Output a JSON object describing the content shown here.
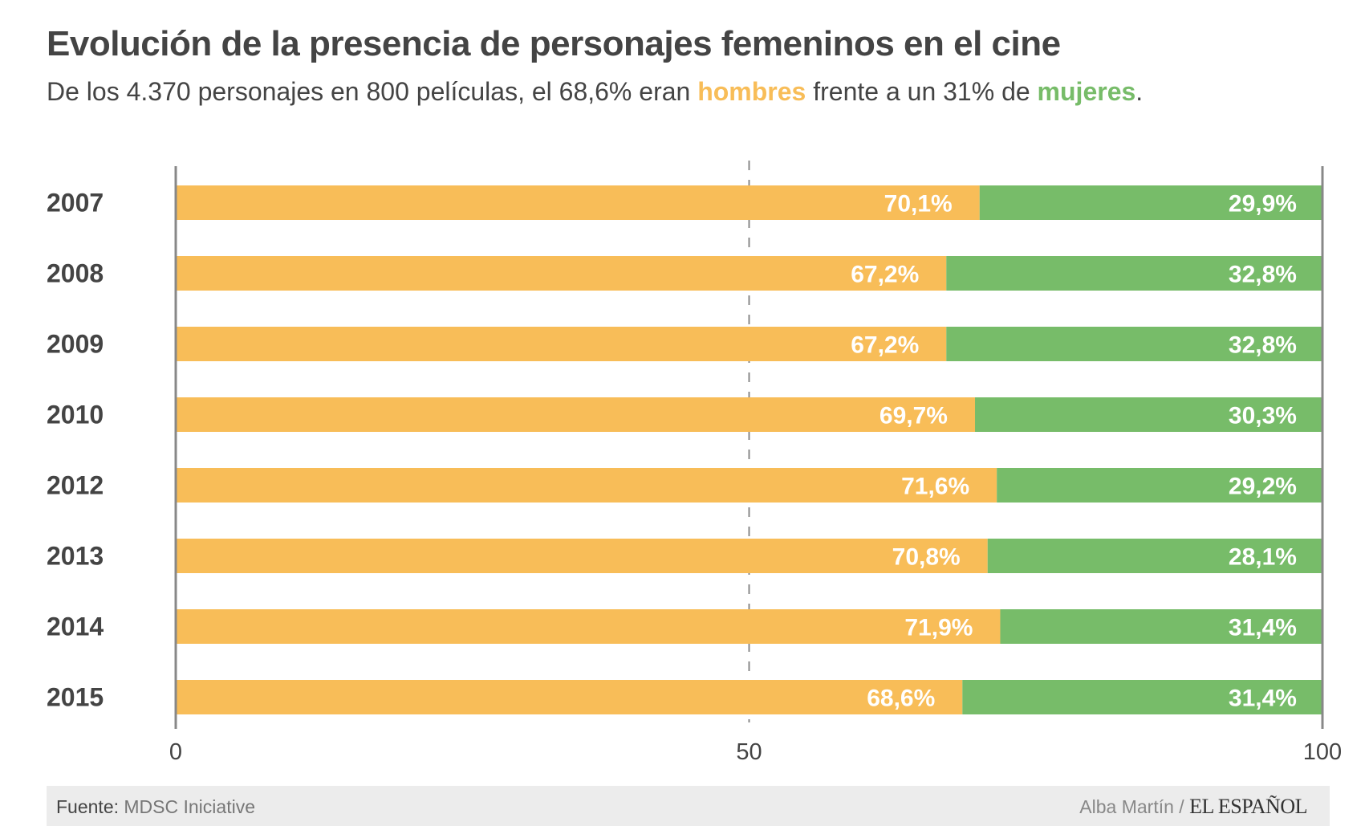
{
  "title": "Evolución de la presencia de personajes femeninos en el cine",
  "subtitle": {
    "part1": "De los 4.370 personajes en 800 películas, el 68,6% eran ",
    "men": "hombres",
    "part2": " frente a un 31% de ",
    "women": "mujeres",
    "part3": "."
  },
  "colors": {
    "men": "#F8BD58",
    "women": "#77BC69",
    "text": "#444444"
  },
  "chart_data": {
    "type": "bar",
    "orientation": "horizontal",
    "stacked": true,
    "categories": [
      "2007",
      "2008",
      "2009",
      "2010",
      "2012",
      "2013",
      "2014",
      "2015"
    ],
    "series": [
      {
        "name": "hombres",
        "values": [
          70.1,
          67.2,
          67.2,
          69.7,
          71.6,
          70.8,
          71.9,
          68.6
        ],
        "labels": [
          "70,1%",
          "67,2%",
          "67,2%",
          "69,7%",
          "71,6%",
          "70,8%",
          "71,9%",
          "68,6%"
        ]
      },
      {
        "name": "mujeres",
        "values": [
          29.9,
          32.8,
          32.8,
          30.3,
          29.2,
          28.1,
          31.4,
          31.4
        ],
        "labels": [
          "29,9%",
          "32,8%",
          "32,8%",
          "30,3%",
          "29,2%",
          "28,1%",
          "31,4%",
          "31,4%"
        ]
      }
    ],
    "xlim": [
      0,
      100
    ],
    "xticks": [
      "0",
      "50",
      "100"
    ],
    "grid": "dashed line at 50"
  },
  "footer": {
    "source_label": "Fuente:",
    "source": " MDSC Iniciative",
    "author": "Alba Martín / ",
    "brand": "EL ESPAÑOL"
  }
}
